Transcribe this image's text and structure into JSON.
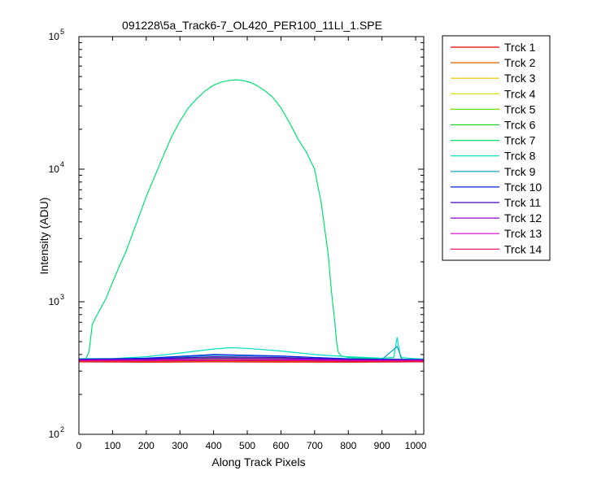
{
  "chart_data": {
    "type": "line",
    "title": "091228\\5a_Track6-7_OL420_PER100_11LI_1.SPE",
    "xlabel": "Along Track Pixels",
    "ylabel": "Intensity (ADU)",
    "xlim": [
      0,
      1024
    ],
    "ylim": [
      100,
      100000
    ],
    "yscale": "log",
    "x_ticks": [
      0,
      100,
      200,
      300,
      400,
      500,
      600,
      700,
      800,
      900,
      1000
    ],
    "y_ticks": [
      {
        "base": "10",
        "exp": "2",
        "value": 100
      },
      {
        "base": "10",
        "exp": "3",
        "value": 1000
      },
      {
        "base": "10",
        "exp": "4",
        "value": 10000
      },
      {
        "base": "10",
        "exp": "5",
        "value": 100000
      }
    ],
    "grid": false,
    "legend_position": "outside-right-top",
    "series": [
      {
        "name": "Trck 1",
        "color": "#e00000",
        "x": [
          0,
          200,
          400,
          600,
          800,
          1024
        ],
        "y": [
          352,
          350,
          352,
          351,
          350,
          352
        ]
      },
      {
        "name": "Trck 2",
        "color": "#e06000",
        "x": [
          0,
          200,
          400,
          600,
          800,
          1024
        ],
        "y": [
          355,
          354,
          356,
          355,
          354,
          355
        ]
      },
      {
        "name": "Trck 3",
        "color": "#f0c000",
        "x": [
          0,
          200,
          400,
          600,
          800,
          1024
        ],
        "y": [
          360,
          358,
          361,
          360,
          359,
          360
        ]
      },
      {
        "name": "Trck 4",
        "color": "#d8e000",
        "x": [
          0,
          200,
          400,
          600,
          800,
          1024
        ],
        "y": [
          363,
          362,
          365,
          364,
          362,
          362
        ]
      },
      {
        "name": "Trck 5",
        "color": "#70e000",
        "x": [
          0,
          200,
          400,
          600,
          800,
          1024
        ],
        "y": [
          366,
          366,
          370,
          368,
          366,
          365
        ]
      },
      {
        "name": "Trck 6",
        "color": "#20d020",
        "x": [
          0,
          200,
          400,
          600,
          800,
          1024
        ],
        "y": [
          368,
          370,
          378,
          374,
          368,
          366
        ]
      },
      {
        "name": "Trck 7",
        "color": "#00e070",
        "x": [
          0,
          20,
          30,
          40,
          50,
          60,
          80,
          100,
          120,
          140,
          160,
          180,
          200,
          225,
          250,
          275,
          300,
          325,
          350,
          375,
          400,
          425,
          450,
          470,
          490,
          510,
          530,
          550,
          575,
          600,
          625,
          650,
          675,
          700,
          720,
          740,
          750,
          760,
          765,
          770,
          775,
          780,
          800,
          900,
          1024
        ],
        "y": [
          370,
          370,
          420,
          680,
          760,
          850,
          1050,
          1400,
          1850,
          2400,
          3300,
          4500,
          6200,
          8800,
          12500,
          17500,
          23000,
          29000,
          34000,
          39000,
          43000,
          45500,
          46800,
          47200,
          46500,
          45000,
          42500,
          39500,
          35000,
          29000,
          22500,
          17000,
          13500,
          10000,
          5500,
          2300,
          1200,
          700,
          500,
          420,
          400,
          390,
          380,
          370,
          368
        ]
      },
      {
        "name": "Trck 8",
        "color": "#00e0c0",
        "x": [
          0,
          100,
          200,
          300,
          400,
          450,
          500,
          600,
          700,
          800,
          900,
          935,
          945,
          955,
          1000,
          1024
        ],
        "y": [
          372,
          373,
          385,
          410,
          440,
          450,
          445,
          425,
          400,
          385,
          375,
          380,
          540,
          380,
          372,
          370
        ]
      },
      {
        "name": "Trck 9",
        "color": "#00a0c0",
        "x": [
          0,
          200,
          400,
          600,
          800,
          900,
          945,
          960,
          1024
        ],
        "y": [
          370,
          372,
          395,
          388,
          372,
          368,
          460,
          368,
          368
        ]
      },
      {
        "name": "Trck 10",
        "color": "#0020e0",
        "x": [
          0,
          200,
          400,
          600,
          800,
          1024
        ],
        "y": [
          368,
          375,
          400,
          390,
          370,
          366
        ]
      },
      {
        "name": "Trck 11",
        "color": "#4000c0",
        "x": [
          0,
          200,
          400,
          600,
          800,
          1024
        ],
        "y": [
          366,
          370,
          385,
          380,
          367,
          364
        ]
      },
      {
        "name": "Trck 12",
        "color": "#9000d0",
        "x": [
          0,
          200,
          400,
          600,
          800,
          1024
        ],
        "y": [
          364,
          366,
          375,
          372,
          364,
          362
        ]
      },
      {
        "name": "Trck 13",
        "color": "#d000c0",
        "x": [
          0,
          200,
          400,
          600,
          800,
          1024
        ],
        "y": [
          360,
          361,
          366,
          365,
          360,
          359
        ]
      },
      {
        "name": "Trck 14",
        "color": "#e00060",
        "x": [
          0,
          200,
          400,
          600,
          800,
          1024
        ],
        "y": [
          357,
          357,
          360,
          359,
          356,
          356
        ]
      }
    ]
  }
}
